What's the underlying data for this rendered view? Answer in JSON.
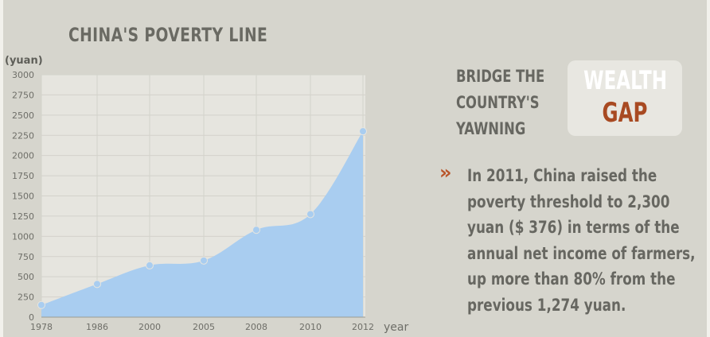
{
  "chart_data": {
    "type": "area",
    "title": "CHINA'S POVERTY LINE",
    "ylabel": "(yuan)",
    "xlabel": "year",
    "x_ticks": [
      "1978",
      "1986",
      "2000",
      "2005",
      "2008",
      "2010",
      "2012"
    ],
    "y_ticks": [
      "3000",
      "2750",
      "2500",
      "2250",
      "2000",
      "1750",
      "1500",
      "1250",
      "1000",
      "750",
      "500",
      "250",
      "0"
    ],
    "ylim": [
      0,
      3000
    ],
    "grid": true,
    "series": [
      {
        "x": [
          "1978",
          "1986",
          "2000",
          "2005",
          "2008",
          "2010",
          "2012"
        ],
        "values": [
          150,
          410,
          640,
          700,
          1080,
          1274,
          2300
        ]
      }
    ],
    "color": "#a9cdf0",
    "marker_color": "#a9cdf0"
  },
  "panel": {
    "bridge_lines": [
      "BRIDGE THE",
      "COUNTRY'S",
      "YAWNING"
    ],
    "badge_line1": "WEALTH",
    "badge_line2": "GAP",
    "badge_line1_color": "#ffffff",
    "badge_line2_color": "#a84a22",
    "bullet_icon": "double-chevron-right-icon",
    "bullet_glyph": "»",
    "bullet_color": "#b9552a",
    "body_lines": [
      "In 2011, China raised the",
      "poverty threshold to 2,300",
      "yuan ($ 376) in terms of the",
      "annual net income of farmers,",
      "up more than 80% from the",
      "previous 1,274 yuan."
    ]
  }
}
